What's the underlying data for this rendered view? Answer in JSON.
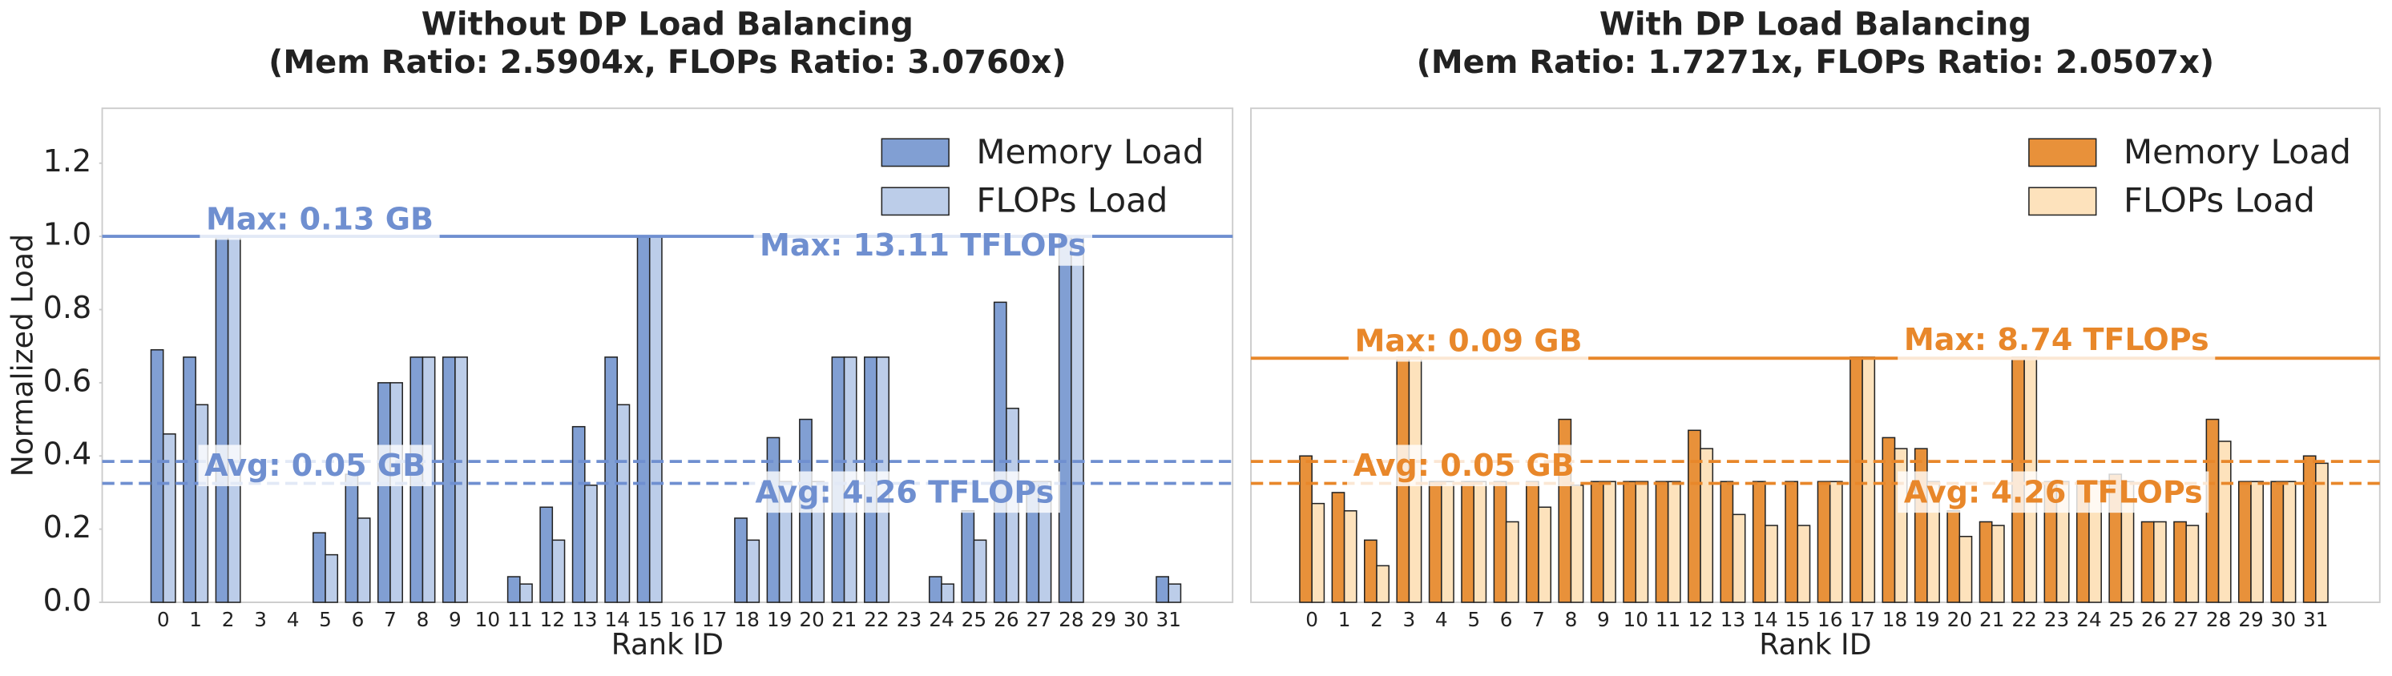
{
  "chart_data": [
    {
      "type": "bar",
      "title": "Without DP Load Balancing",
      "subtitle": "(Mem Ratio: 2.5904x, FLOPs Ratio: 3.0760x)",
      "x_label": "Rank ID",
      "y_label": "Normalized Load",
      "categories": [
        "0",
        "1",
        "2",
        "3",
        "4",
        "5",
        "6",
        "7",
        "8",
        "9",
        "10",
        "11",
        "12",
        "13",
        "14",
        "15",
        "16",
        "17",
        "18",
        "19",
        "20",
        "21",
        "22",
        "23",
        "24",
        "25",
        "26",
        "27",
        "28",
        "29",
        "30",
        "31"
      ],
      "series": [
        {
          "name": "Memory Load",
          "color": "#819fd3",
          "values": [
            0.69,
            0.67,
            1.0,
            0,
            0,
            0.19,
            0.35,
            0.6,
            0.67,
            0.67,
            0,
            0.07,
            0.26,
            0.48,
            0.67,
            1.0,
            0,
            0,
            0.23,
            0.45,
            0.5,
            0.67,
            0.67,
            0,
            0.07,
            0.25,
            0.82,
            0.33,
            1.0,
            0,
            0,
            0.07
          ]
        },
        {
          "name": "FLOPs Load",
          "color": "#bccde9",
          "values": [
            0.46,
            0.54,
            1.0,
            0,
            0,
            0.13,
            0.23,
            0.6,
            0.67,
            0.67,
            0,
            0.05,
            0.17,
            0.32,
            0.54,
            1.0,
            0,
            0,
            0.17,
            0.33,
            0.33,
            0.67,
            0.67,
            0,
            0.05,
            0.17,
            0.53,
            0.33,
            1.0,
            0,
            0,
            0.05
          ]
        }
      ],
      "ylim": [
        0,
        1.35
      ],
      "yticks": [
        {
          "value": 0,
          "label": "0.0"
        },
        0.2,
        0.4,
        0.6,
        0.8,
        {
          "value": 1,
          "label": "1.0"
        },
        1.2
      ],
      "legend": "upper right",
      "line_color": "#6f8fd0",
      "annotations": [
        {
          "text": "Max: 0.13 GB",
          "y": 1.0,
          "line_style": "solid"
        },
        {
          "text": "Max: 13.11 TFLOPs",
          "y": 1.0,
          "line_style": "solid"
        },
        {
          "text": "Avg: 0.05 GB",
          "y": 0.385,
          "line_style": "dashed"
        },
        {
          "text": "Avg: 4.26 TFLOPs",
          "y": 0.325,
          "line_style": "dashed"
        }
      ]
    },
    {
      "type": "bar",
      "title": "With DP Load Balancing",
      "subtitle": "(Mem Ratio: 1.7271x, FLOPs Ratio: 2.0507x)",
      "x_label": "Rank ID",
      "categories": [
        "0",
        "1",
        "2",
        "3",
        "4",
        "5",
        "6",
        "7",
        "8",
        "9",
        "10",
        "11",
        "12",
        "13",
        "14",
        "15",
        "16",
        "17",
        "18",
        "19",
        "20",
        "21",
        "22",
        "23",
        "24",
        "25",
        "26",
        "27",
        "28",
        "29",
        "30",
        "31"
      ],
      "series": [
        {
          "name": "Memory Load",
          "color": "#e8913a",
          "values": [
            0.4,
            0.3,
            0.17,
            0.67,
            0.33,
            0.33,
            0.33,
            0.33,
            0.5,
            0.33,
            0.33,
            0.33,
            0.47,
            0.33,
            0.33,
            0.33,
            0.33,
            0.67,
            0.45,
            0.42,
            0.25,
            0.22,
            0.67,
            0.33,
            0.33,
            0.35,
            0.22,
            0.22,
            0.5,
            0.33,
            0.33,
            0.4
          ]
        },
        {
          "name": "FLOPs Load",
          "color": "#fde2bc",
          "values": [
            0.27,
            0.25,
            0.1,
            0.67,
            0.33,
            0.33,
            0.22,
            0.26,
            0.32,
            0.33,
            0.33,
            0.33,
            0.42,
            0.24,
            0.21,
            0.21,
            0.33,
            0.67,
            0.42,
            0.33,
            0.18,
            0.21,
            0.67,
            0.33,
            0.33,
            0.33,
            0.22,
            0.21,
            0.44,
            0.33,
            0.33,
            0.38
          ]
        }
      ],
      "ylim": [
        0,
        1.35
      ],
      "legend": "upper right",
      "line_color": "#e8872a",
      "annotations": [
        {
          "text": "Max: 0.09 GB",
          "y": 0.667,
          "line_style": "solid"
        },
        {
          "text": "Max: 8.74 TFLOPs",
          "y": 0.667,
          "line_style": "solid"
        },
        {
          "text": "Avg: 0.05 GB",
          "y": 0.385,
          "line_style": "dashed"
        },
        {
          "text": "Avg: 4.26 TFLOPs",
          "y": 0.325,
          "line_style": "dashed"
        }
      ]
    }
  ]
}
